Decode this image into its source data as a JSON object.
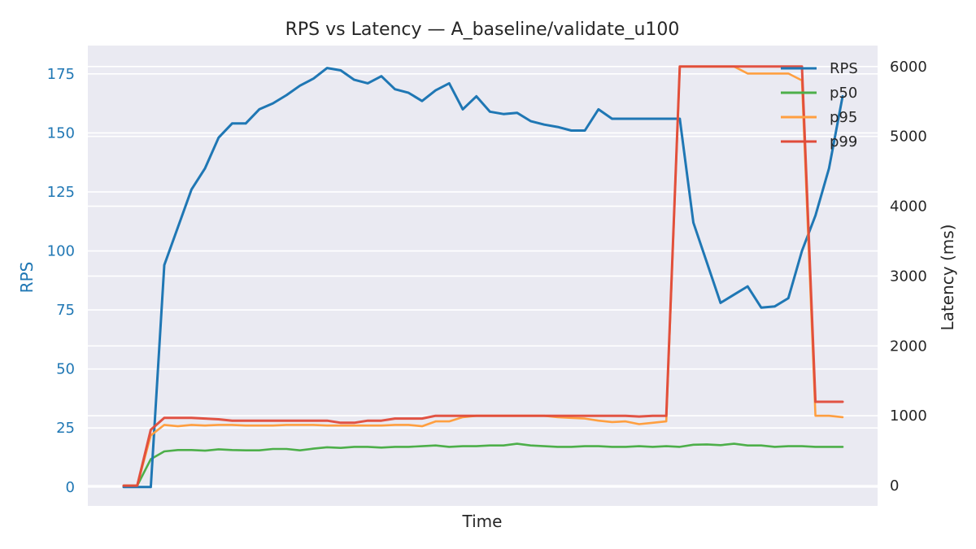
{
  "chart_data": {
    "type": "line",
    "title": "RPS vs Latency — A_baseline/validate_u100",
    "xlabel": "Time",
    "ylabel_left": "RPS",
    "ylabel_right": "Latency (ms)",
    "ylim_left": [
      -8,
      187
    ],
    "ylim_right": [
      -290,
      6300
    ],
    "yticks_left": [
      0,
      25,
      50,
      75,
      100,
      125,
      150,
      175
    ],
    "yticks_right": [
      0,
      1000,
      2000,
      3000,
      4000,
      5000,
      6000
    ],
    "x": [
      0,
      1,
      2,
      3,
      4,
      5,
      6,
      7,
      8,
      9,
      10,
      11,
      12,
      13,
      14,
      15,
      16,
      17,
      18,
      19,
      20,
      21,
      22,
      23,
      24,
      25,
      26,
      27,
      28,
      29,
      30,
      31,
      32,
      33,
      34,
      35,
      36,
      37,
      38,
      39,
      40,
      41,
      42,
      43,
      44,
      45,
      46,
      47,
      48,
      49,
      50,
      51,
      52,
      53
    ],
    "grid": true,
    "legend_position": "top-right",
    "colors": {
      "background": "#eaeaf2",
      "grid": "#ffffff",
      "left_axis": "#1f77b4",
      "text": "#262626"
    },
    "series": [
      {
        "name": "RPS",
        "axis": "left",
        "color": "#1f77b4",
        "values": [
          0,
          0,
          0,
          94,
          110,
          126,
          135,
          148,
          154,
          154,
          160,
          162.5,
          166,
          170,
          173,
          177.5,
          176.5,
          172.5,
          171,
          174,
          168.5,
          167,
          163.5,
          168,
          171,
          160,
          165.5,
          159,
          158,
          158.5,
          155,
          153.5,
          152.5,
          151,
          151,
          160,
          156,
          156,
          156,
          156,
          156,
          156,
          112,
          95,
          78,
          81.5,
          85,
          76,
          76.5,
          80,
          100,
          115,
          135,
          165.5
        ]
      },
      {
        "name": "p50",
        "axis": "right",
        "color": "#4daf4a",
        "values": [
          0,
          0,
          380,
          490,
          510,
          510,
          500,
          520,
          510,
          505,
          505,
          525,
          525,
          505,
          530,
          550,
          540,
          555,
          555,
          545,
          555,
          555,
          565,
          575,
          555,
          565,
          565,
          575,
          575,
          600,
          575,
          565,
          555,
          555,
          565,
          565,
          555,
          555,
          565,
          555,
          565,
          555,
          585,
          590,
          580,
          600,
          575,
          575,
          555,
          565,
          565,
          555,
          555,
          555
        ]
      },
      {
        "name": "p95",
        "axis": "right",
        "color": "#ff9f40",
        "values": [
          0,
          0,
          720,
          870,
          850,
          870,
          860,
          870,
          870,
          860,
          860,
          860,
          870,
          870,
          870,
          860,
          860,
          860,
          860,
          860,
          870,
          870,
          850,
          920,
          920,
          980,
          1000,
          1000,
          1000,
          1000,
          1000,
          1000,
          980,
          970,
          960,
          930,
          910,
          920,
          880,
          900,
          920,
          6000,
          6000,
          6000,
          6000,
          6000,
          5900,
          5900,
          5900,
          5900,
          5800,
          1000,
          1000,
          980
        ]
      },
      {
        "name": "p99",
        "axis": "right",
        "color": "#e04b3a",
        "values": [
          0,
          0,
          800,
          970,
          970,
          970,
          960,
          950,
          930,
          930,
          930,
          930,
          930,
          930,
          930,
          930,
          900,
          900,
          930,
          930,
          960,
          960,
          960,
          1000,
          1000,
          1000,
          1000,
          1000,
          1000,
          1000,
          1000,
          1000,
          1000,
          1000,
          1000,
          1000,
          1000,
          1000,
          990,
          1000,
          1000,
          6000,
          6000,
          6000,
          6000,
          6000,
          6000,
          6000,
          6000,
          6000,
          6000,
          1200,
          1200,
          1200
        ]
      }
    ]
  }
}
